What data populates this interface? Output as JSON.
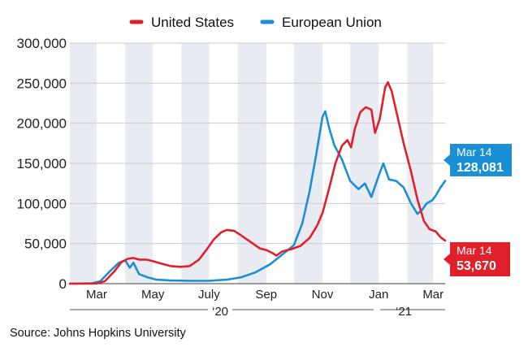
{
  "chart_data": {
    "type": "line",
    "title": "",
    "xlabel": "",
    "ylabel": "",
    "ylim": [
      0,
      300000
    ],
    "y_ticks": [
      {
        "value": 0,
        "label": "0"
      },
      {
        "value": 50000,
        "label": "50,000"
      },
      {
        "value": 100000,
        "label": "100,000"
      },
      {
        "value": 150000,
        "label": "150,000"
      },
      {
        "value": 200000,
        "label": "200,000"
      },
      {
        "value": 250000,
        "label": "250,000"
      },
      {
        "value": 300000,
        "label": "300,000"
      }
    ],
    "x_ticks": [
      {
        "date": "2020-03-01",
        "label": "Mar"
      },
      {
        "date": "2020-05-01",
        "label": "May"
      },
      {
        "date": "2020-07-01",
        "label": "July"
      },
      {
        "date": "2020-09-01",
        "label": "Sep"
      },
      {
        "date": "2020-11-01",
        "label": "Nov"
      },
      {
        "date": "2021-01-01",
        "label": "Jan"
      },
      {
        "date": "2021-03-01",
        "label": "Mar"
      }
    ],
    "xlim": [
      "2020-02-01",
      "2021-03-14"
    ],
    "years": [
      {
        "label": "‘20",
        "start": "2020-02-01",
        "end": "2020-12-31"
      },
      {
        "label": "‘21",
        "start": "2021-01-01",
        "end": "2021-03-14"
      }
    ],
    "grid": "horizontal",
    "month_shading": "alternating",
    "legend": "top-center",
    "series": [
      {
        "name": "United States",
        "color": "#e0202a",
        "points": [
          [
            "2020-02-01",
            0
          ],
          [
            "2020-02-20",
            0
          ],
          [
            "2020-03-01",
            300
          ],
          [
            "2020-03-10",
            3000
          ],
          [
            "2020-03-20",
            15000
          ],
          [
            "2020-03-28",
            27000
          ],
          [
            "2020-04-04",
            31000
          ],
          [
            "2020-04-10",
            32000
          ],
          [
            "2020-04-16",
            30000
          ],
          [
            "2020-04-24",
            30000
          ],
          [
            "2020-05-01",
            28000
          ],
          [
            "2020-05-10",
            25000
          ],
          [
            "2020-05-20",
            22000
          ],
          [
            "2020-05-31",
            21000
          ],
          [
            "2020-06-10",
            22000
          ],
          [
            "2020-06-20",
            30000
          ],
          [
            "2020-06-28",
            42000
          ],
          [
            "2020-07-06",
            55000
          ],
          [
            "2020-07-14",
            64000
          ],
          [
            "2020-07-20",
            67000
          ],
          [
            "2020-07-28",
            66000
          ],
          [
            "2020-08-05",
            60000
          ],
          [
            "2020-08-15",
            52000
          ],
          [
            "2020-08-25",
            44000
          ],
          [
            "2020-09-01",
            42000
          ],
          [
            "2020-09-08",
            38000
          ],
          [
            "2020-09-12",
            35000
          ],
          [
            "2020-09-18",
            40000
          ],
          [
            "2020-09-28",
            43000
          ],
          [
            "2020-10-08",
            47000
          ],
          [
            "2020-10-18",
            57000
          ],
          [
            "2020-10-26",
            72000
          ],
          [
            "2020-11-01",
            88000
          ],
          [
            "2020-11-08",
            118000
          ],
          [
            "2020-11-15",
            150000
          ],
          [
            "2020-11-22",
            172000
          ],
          [
            "2020-11-28",
            179000
          ],
          [
            "2020-12-02",
            170000
          ],
          [
            "2020-12-06",
            193000
          ],
          [
            "2020-12-12",
            214000
          ],
          [
            "2020-12-18",
            220000
          ],
          [
            "2020-12-24",
            217000
          ],
          [
            "2020-12-28",
            188000
          ],
          [
            "2021-01-02",
            205000
          ],
          [
            "2021-01-08",
            245000
          ],
          [
            "2021-01-11",
            251000
          ],
          [
            "2021-01-15",
            240000
          ],
          [
            "2021-01-21",
            210000
          ],
          [
            "2021-01-28",
            175000
          ],
          [
            "2021-02-05",
            140000
          ],
          [
            "2021-02-12",
            105000
          ],
          [
            "2021-02-19",
            78000
          ],
          [
            "2021-02-25",
            68000
          ],
          [
            "2021-03-04",
            65000
          ],
          [
            "2021-03-09",
            58000
          ],
          [
            "2021-03-14",
            53670
          ]
        ]
      },
      {
        "name": "European Union",
        "color": "#1a8fd6",
        "points": [
          [
            "2020-02-01",
            0
          ],
          [
            "2020-02-25",
            500
          ],
          [
            "2020-03-05",
            3000
          ],
          [
            "2020-03-15",
            15000
          ],
          [
            "2020-03-25",
            26000
          ],
          [
            "2020-04-01",
            29000
          ],
          [
            "2020-04-06",
            20000
          ],
          [
            "2020-04-10",
            26000
          ],
          [
            "2020-04-16",
            12000
          ],
          [
            "2020-04-25",
            8000
          ],
          [
            "2020-05-05",
            5000
          ],
          [
            "2020-05-20",
            4000
          ],
          [
            "2020-06-10",
            3500
          ],
          [
            "2020-07-01",
            3500
          ],
          [
            "2020-07-20",
            5000
          ],
          [
            "2020-08-05",
            8000
          ],
          [
            "2020-08-20",
            14000
          ],
          [
            "2020-09-05",
            24000
          ],
          [
            "2020-09-18",
            36000
          ],
          [
            "2020-10-01",
            48000
          ],
          [
            "2020-10-10",
            75000
          ],
          [
            "2020-10-18",
            115000
          ],
          [
            "2020-10-25",
            160000
          ],
          [
            "2020-11-01",
            208000
          ],
          [
            "2020-11-04",
            215000
          ],
          [
            "2020-11-08",
            195000
          ],
          [
            "2020-11-14",
            172000
          ],
          [
            "2020-11-22",
            155000
          ],
          [
            "2020-12-01",
            128000
          ],
          [
            "2020-12-10",
            118000
          ],
          [
            "2020-12-17",
            125000
          ],
          [
            "2020-12-24",
            108000
          ],
          [
            "2021-01-01",
            135000
          ],
          [
            "2021-01-06",
            150000
          ],
          [
            "2021-01-12",
            130000
          ],
          [
            "2021-01-20",
            128000
          ],
          [
            "2021-01-28",
            120000
          ],
          [
            "2021-02-05",
            100000
          ],
          [
            "2021-02-12",
            87000
          ],
          [
            "2021-02-17",
            92000
          ],
          [
            "2021-02-22",
            100000
          ],
          [
            "2021-02-28",
            104000
          ],
          [
            "2021-03-04",
            110000
          ],
          [
            "2021-03-09",
            120000
          ],
          [
            "2021-03-14",
            128081
          ]
        ]
      }
    ],
    "end_labels": [
      {
        "series": "European Union",
        "date": "Mar 14",
        "value": "128,081",
        "color": "#1a8fd6"
      },
      {
        "series": "United States",
        "date": "Mar 14",
        "value": "53,670",
        "color": "#e0202a"
      }
    ]
  },
  "source": "Source: Johns Hopkins University"
}
